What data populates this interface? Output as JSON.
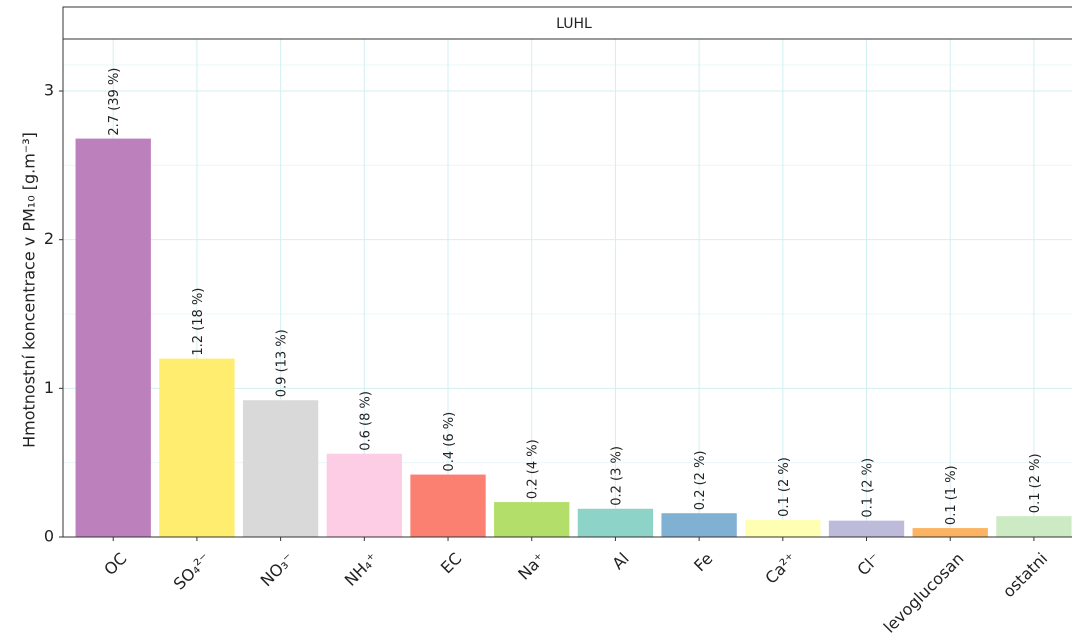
{
  "chart_data": {
    "type": "bar",
    "facet": "LUHL",
    "ylabel": "Hmotnostní koncentrace v  PM₁₀ [g.m⁻³]",
    "categories": [
      "OC",
      "SO₄²⁻",
      "NO₃⁻",
      "NH₄⁺",
      "EC",
      "Na⁺",
      "Al",
      "Fe",
      "Ca²⁺",
      "Cl⁻",
      "levoglucosan",
      "ostatni"
    ],
    "values": [
      2.68,
      1.2,
      0.92,
      0.56,
      0.42,
      0.235,
      0.19,
      0.16,
      0.115,
      0.11,
      0.06,
      0.14
    ],
    "value_labels": [
      "2.7 (39 %)",
      "1.2 (18 %)",
      "0.9 (13 %)",
      "0.6 (8 %)",
      "0.4 (6 %)",
      "0.2 (4 %)",
      "0.2 (3 %)",
      "0.2 (2 %)",
      "0.1 (2 %)",
      "0.1 (2 %)",
      "0.1 (1 %)",
      "0.1 (2 %)"
    ],
    "colors": [
      "#bc80bd",
      "#ffed6f",
      "#d9d9d9",
      "#fccde5",
      "#fb8072",
      "#b3de69",
      "#8dd3c7",
      "#80b1d3",
      "#ffffb3",
      "#bebada",
      "#fdb462",
      "#ccebc5"
    ],
    "ylim": [
      0,
      3.35
    ],
    "yticks": [
      0,
      1,
      2,
      3
    ],
    "grid": true
  }
}
